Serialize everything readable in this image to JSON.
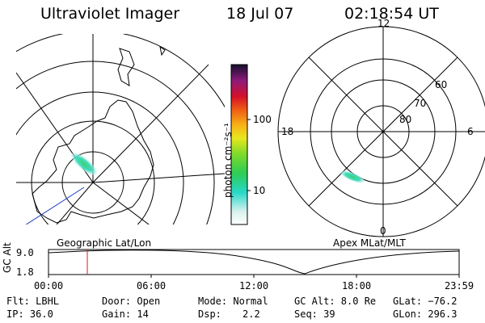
{
  "header": {
    "title": "Ultraviolet Imager",
    "date": "18 Jul 07",
    "time": "02:18:54 UT"
  },
  "colorbar": {
    "unit_label": "photon cm⁻²s⁻¹",
    "ticks": [
      "100",
      "10"
    ],
    "scale": "log"
  },
  "geo_panel": {
    "label": "Geographic Lat/Lon"
  },
  "apex_panel": {
    "label": "Apex MLat/MLT",
    "mlt_labels": {
      "top": "12",
      "right": "6",
      "bottom": "0",
      "left": "18"
    },
    "mlat_labels": [
      "60",
      "70",
      "80"
    ]
  },
  "altitude_plot": {
    "axis_label": "GC Alt",
    "y_ticks": [
      "9.0",
      "1.8"
    ],
    "x_ticks": [
      "00:00",
      "06:00",
      "12:00",
      "18:00",
      "23:59"
    ]
  },
  "status": {
    "filter": "Flt: LBHL",
    "ip": "IP: 36.0",
    "door": "Door: Open",
    "gain": "Gain: 14",
    "mode": "Mode: Normal",
    "dsp_label": "Dsp:",
    "dsp_value": "2.2",
    "gc_alt": "GC Alt: 8.0 Re",
    "seq": "Seq: 39",
    "glat": "GLat: −76.2",
    "glon": "GLon: 296.3"
  },
  "colors": {
    "background": "#ffffff",
    "foreground": "#000000",
    "aurora": "#39d98a",
    "cursor_line": "#cc2222",
    "track_line": "#1f3fbf"
  }
}
